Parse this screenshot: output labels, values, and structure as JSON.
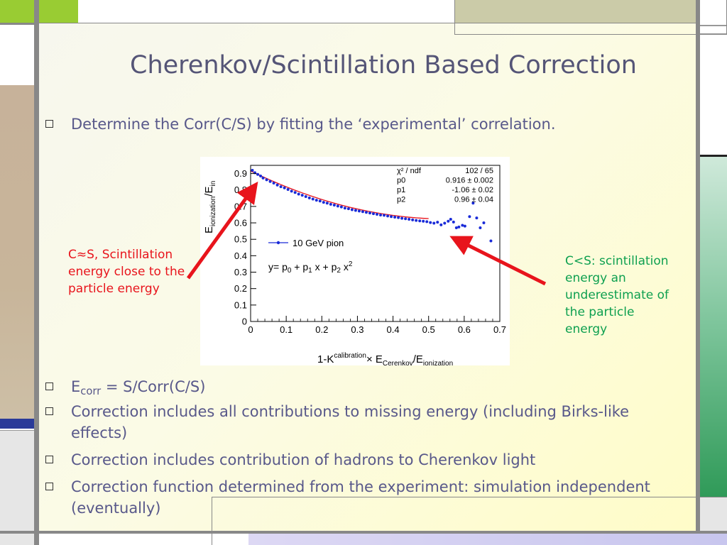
{
  "slide": {
    "title": "Cherenkov/Scintillation Based  Correction",
    "bullets_top": [
      {
        "text": "Determine the Corr(C/S) by fitting the ‘experimental’ correlation."
      }
    ],
    "bullet_ecorr": {
      "e": "E",
      "sub": "corr",
      "rest": " = S/Corr(C/S)"
    },
    "bullets_bottom": [
      {
        "text": "Correction includes all contributions to missing energy (including Birks-like effects)"
      },
      {
        "text": "Correction includes contribution of hadrons to Cherenkov light"
      },
      {
        "text": "Correction function determined from the experiment: simulation independent (eventually)"
      }
    ],
    "annotation_left": {
      "text": "C≈S, Scintillation energy close to the particle energy",
      "color": "#e8141c"
    },
    "annotation_right": {
      "text": "C<S: scintillation energy  an underestimate of the particle energy",
      "color": "#0ea050"
    },
    "colors": {
      "title": "#555577",
      "text": "#58588a",
      "arrow": "#e8141c",
      "green_bar": "#38a060"
    }
  },
  "chart_data": {
    "type": "scatter",
    "title": "",
    "xlabel": {
      "base": "1-K",
      "sup": "calibration",
      "times": "× E",
      "sub1": "Cerenkov",
      "slash": "/E",
      "sub2": "ionization"
    },
    "ylabel": {
      "e1": "E",
      "sub1": "ionization",
      "slash": "/E",
      "sub2": "in"
    },
    "xlim": [
      0,
      0.7
    ],
    "ylim": [
      0,
      0.95
    ],
    "x_ticks": [
      "0",
      "0.1",
      "0.2",
      "0.3",
      "0.4",
      "0.5",
      "0.6",
      "0.7"
    ],
    "y_ticks": [
      "0",
      "0.1",
      "0.2",
      "0.3",
      "0.4",
      "0.5",
      "0.6",
      "0.7",
      "0.8",
      "0.9"
    ],
    "legend": {
      "label": "10 GeV pion",
      "color": "#1a2bd8"
    },
    "formula": {
      "y": "y= p",
      "s0": "0",
      "mid1": " + p",
      "s1": "1",
      "mid2": " x + p",
      "s2": "2",
      "end": " x",
      "pow": "2"
    },
    "fit_box": {
      "chi2_label": "χ² / ndf",
      "chi2_value": "102 / 65",
      "rows": [
        {
          "name": "p0",
          "value": "0.916 ± 0.002"
        },
        {
          "name": "p1",
          "value": "-1.06 ± 0.02"
        },
        {
          "name": "p2",
          "value": "0.96 ± 0.04"
        }
      ]
    },
    "fit": {
      "p0": 0.916,
      "p1": -1.06,
      "p2": 0.96,
      "x_range": [
        0,
        0.5
      ],
      "color": "#e8141c"
    },
    "series": [
      {
        "color": "#1a2bd8",
        "points": [
          [
            0.005,
            0.92
          ],
          [
            0.012,
            0.905
          ],
          [
            0.02,
            0.895
          ],
          [
            0.028,
            0.885
          ],
          [
            0.035,
            0.873
          ],
          [
            0.045,
            0.862
          ],
          [
            0.055,
            0.852
          ],
          [
            0.065,
            0.842
          ],
          [
            0.075,
            0.83
          ],
          [
            0.085,
            0.82
          ],
          [
            0.095,
            0.813
          ],
          [
            0.105,
            0.803
          ],
          [
            0.115,
            0.793
          ],
          [
            0.125,
            0.785
          ],
          [
            0.135,
            0.775
          ],
          [
            0.145,
            0.768
          ],
          [
            0.155,
            0.76
          ],
          [
            0.165,
            0.752
          ],
          [
            0.175,
            0.745
          ],
          [
            0.185,
            0.738
          ],
          [
            0.195,
            0.733
          ],
          [
            0.205,
            0.725
          ],
          [
            0.215,
            0.72
          ],
          [
            0.225,
            0.713
          ],
          [
            0.235,
            0.708
          ],
          [
            0.245,
            0.702
          ],
          [
            0.255,
            0.697
          ],
          [
            0.265,
            0.69
          ],
          [
            0.275,
            0.686
          ],
          [
            0.285,
            0.68
          ],
          [
            0.295,
            0.676
          ],
          [
            0.305,
            0.672
          ],
          [
            0.315,
            0.668
          ],
          [
            0.325,
            0.664
          ],
          [
            0.335,
            0.66
          ],
          [
            0.345,
            0.656
          ],
          [
            0.355,
            0.652
          ],
          [
            0.365,
            0.648
          ],
          [
            0.375,
            0.646
          ],
          [
            0.385,
            0.642
          ],
          [
            0.395,
            0.638
          ],
          [
            0.405,
            0.635
          ],
          [
            0.415,
            0.632
          ],
          [
            0.425,
            0.628
          ],
          [
            0.435,
            0.625
          ],
          [
            0.445,
            0.622
          ],
          [
            0.455,
            0.618
          ],
          [
            0.465,
            0.615
          ],
          [
            0.475,
            0.612
          ],
          [
            0.485,
            0.61
          ],
          [
            0.495,
            0.607
          ],
          [
            0.505,
            0.602
          ],
          [
            0.515,
            0.598
          ],
          [
            0.525,
            0.604
          ],
          [
            0.535,
            0.588
          ],
          [
            0.545,
            0.598
          ],
          [
            0.555,
            0.61
          ],
          [
            0.562,
            0.622
          ],
          [
            0.57,
            0.605
          ],
          [
            0.578,
            0.57
          ],
          [
            0.585,
            0.575
          ],
          [
            0.595,
            0.585
          ],
          [
            0.602,
            0.58
          ],
          [
            0.615,
            0.638
          ],
          [
            0.625,
            0.72
          ],
          [
            0.635,
            0.63
          ],
          [
            0.645,
            0.57
          ],
          [
            0.655,
            0.6
          ],
          [
            0.675,
            0.49
          ]
        ]
      }
    ]
  }
}
